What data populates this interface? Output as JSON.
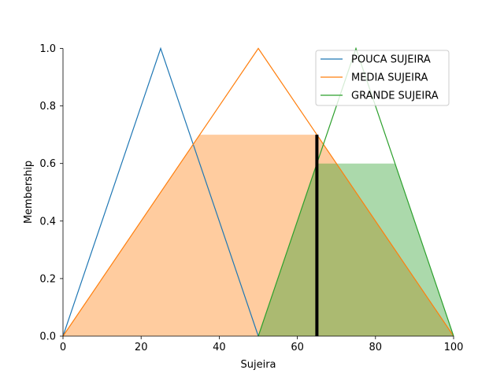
{
  "chart_data": {
    "type": "line",
    "title": "",
    "xlabel": "Sujeira",
    "ylabel": "Membership",
    "xlim": [
      0,
      100
    ],
    "ylim": [
      0,
      1
    ],
    "xticks": [
      "0",
      "20",
      "40",
      "60",
      "80",
      "100"
    ],
    "yticks": [
      "0.0",
      "0.2",
      "0.4",
      "0.6",
      "0.8",
      "1.0"
    ],
    "grid": false,
    "legend_position": "top-right",
    "series": [
      {
        "name": "POUCA SUJEIRA",
        "color": "#1f77b4",
        "x": [
          0,
          25,
          50
        ],
        "y": [
          0,
          1,
          0
        ]
      },
      {
        "name": "MEDIA SUJEIRA",
        "color": "#ff7f0e",
        "x": [
          0,
          50,
          100
        ],
        "y": [
          0,
          1,
          0
        ]
      },
      {
        "name": "GRANDE SUJEIRA",
        "color": "#2ca02c",
        "x": [
          50,
          75,
          100
        ],
        "y": [
          0,
          1,
          0
        ]
      }
    ],
    "activations": [
      {
        "series": "MEDIA SUJEIRA",
        "level": 0.7,
        "fill_color": "#ff7f0e"
      },
      {
        "series": "GRANDE SUJEIRA",
        "level": 0.6,
        "fill_color": "#2ca02c"
      }
    ],
    "crisp_input": {
      "x": 65,
      "membership": 0.7
    }
  }
}
